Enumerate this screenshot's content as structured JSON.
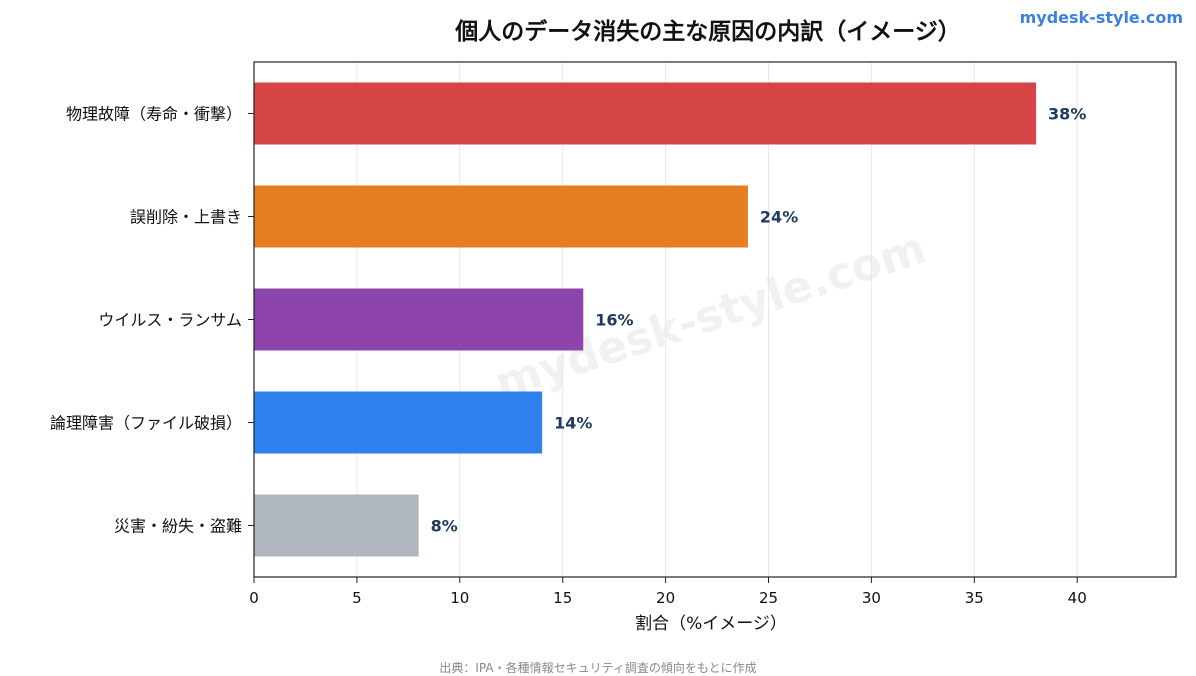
{
  "brand": "mydesk-style.com",
  "watermark": "mydesk-style.com",
  "source_note": "出典：IPA・各種情報セキュリティ調査の傾向をもとに作成",
  "chart_data": {
    "type": "bar",
    "orientation": "horizontal",
    "title": "個人のデータ消失の主な原因の内訳（イメージ）",
    "xlabel": "割合（%イメージ）",
    "ylabel": "",
    "categories": [
      "物理故障（寿命・衝撃）",
      "誤削除・上書き",
      "ウイルス・ランサム",
      "論理障害（ファイル破損）",
      "災害・紛失・盗難"
    ],
    "values": [
      38,
      24,
      16,
      14,
      8
    ],
    "value_labels": [
      "38%",
      "24%",
      "16%",
      "14%",
      "8%"
    ],
    "colors": [
      "#d64545",
      "#e67e22",
      "#8e44ad",
      "#2f80ed",
      "#b0b7bf"
    ],
    "xlim": [
      0,
      44.8
    ],
    "xticks": [
      0,
      5,
      10,
      15,
      20,
      25,
      30,
      35,
      40
    ],
    "grid": "x"
  }
}
